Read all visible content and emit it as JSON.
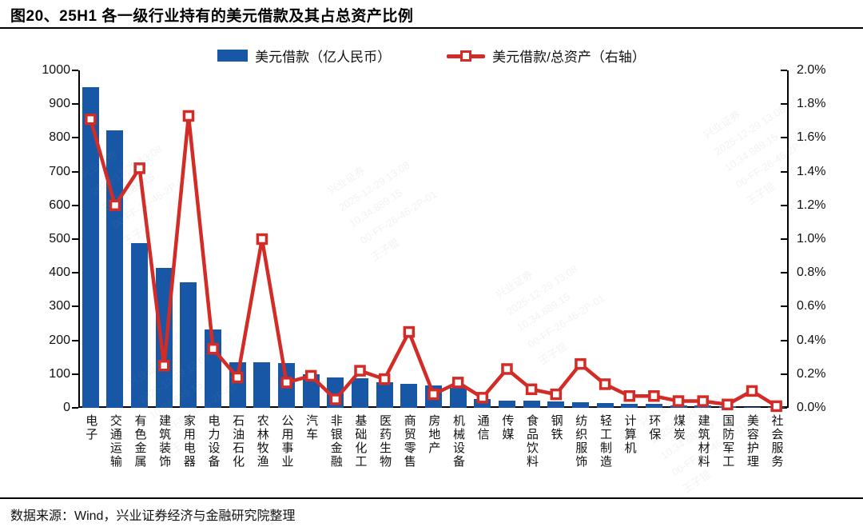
{
  "title": "图20、25H1 各一级行业持有的美元借款及其占总资产比例",
  "legend": {
    "bar_label": "美元借款（亿人民币）",
    "line_label": "美元借款/总资产（右轴）"
  },
  "source": "数据来源：Wind，兴业证券经济与金融研究院整理",
  "colors": {
    "bar": "#1757a5",
    "line": "#d32b26",
    "axis": "#000000",
    "text": "#111111"
  },
  "watermark": "兴业证券\n2025-12-29 13:08\n10.34.889.15\n00-FF-26-46-2P-01\n王子锟",
  "chart_data": {
    "type": "bar+line",
    "title": "图20、25H1 各一级行业持有的美元借款及其占总资产比例",
    "grid": false,
    "legend_position": "top-center",
    "categories": [
      "电子",
      "交通运输",
      "有色金属",
      "建筑装饰",
      "家用电器",
      "电力设备",
      "石油石化",
      "农林牧渔",
      "公用事业",
      "汽车",
      "非银金融",
      "基础化工",
      "医药生物",
      "商贸零售",
      "房地产",
      "机械设备",
      "通信",
      "传媒",
      "食品饮料",
      "钢铁",
      "纺织服饰",
      "轻工制造",
      "计算机",
      "环保",
      "煤炭",
      "建筑材料",
      "国防军工",
      "美容护理",
      "社会服务"
    ],
    "series": [
      {
        "name": "美元借款（亿人民币）",
        "type": "bar",
        "axis": "left",
        "values": [
          950,
          822,
          488,
          415,
          372,
          232,
          136,
          135,
          132,
          100,
          91,
          87,
          75,
          71,
          67,
          59,
          25,
          22,
          21,
          20,
          16,
          15,
          12,
          11,
          8,
          7,
          5,
          3,
          2
        ]
      },
      {
        "name": "美元借款/总资产（右轴）",
        "type": "line",
        "axis": "right",
        "unit": "%",
        "values": [
          1.71,
          1.2,
          1.42,
          0.25,
          1.73,
          0.35,
          0.18,
          1.0,
          0.15,
          0.19,
          0.05,
          0.22,
          0.17,
          0.45,
          0.08,
          0.15,
          0.06,
          0.23,
          0.11,
          0.08,
          0.26,
          0.14,
          0.07,
          0.07,
          0.04,
          0.04,
          0.02,
          0.1,
          0.01
        ]
      }
    ],
    "left_axis": {
      "label": "",
      "min": 0,
      "max": 1000,
      "tick_step": 100,
      "ticks": [
        "1000",
        "900",
        "800",
        "700",
        "600",
        "500",
        "400",
        "300",
        "200",
        "100",
        "0"
      ]
    },
    "right_axis": {
      "label": "",
      "min": 0.0,
      "max": 2.0,
      "tick_step": 0.2,
      "ticks": [
        "2.0%",
        "1.8%",
        "1.6%",
        "1.4%",
        "1.2%",
        "1.0%",
        "0.8%",
        "0.6%",
        "0.4%",
        "0.2%",
        "0.0%"
      ]
    }
  }
}
